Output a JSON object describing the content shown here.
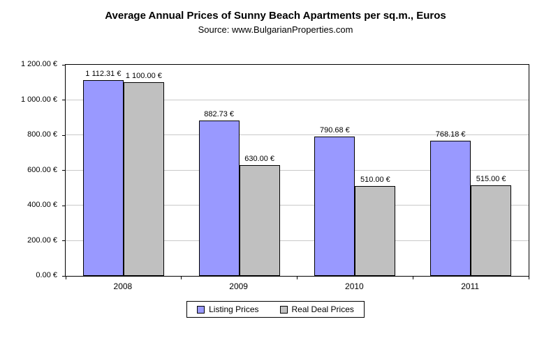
{
  "chart_data": {
    "type": "bar",
    "title": "Average Annual Prices of Sunny Beach Apartments per sq.m., Euros",
    "subtitle": "Source: www.BulgarianProperties.com",
    "xlabel": "",
    "ylabel": "",
    "ylim": [
      0,
      1200
    ],
    "grid": true,
    "legend_position": "bottom",
    "categories": [
      "2008",
      "2009",
      "2010",
      "2011"
    ],
    "yticks": [
      {
        "value": 0,
        "label": "0.00 €"
      },
      {
        "value": 200,
        "label": "200.00 €"
      },
      {
        "value": 400,
        "label": "400.00 €"
      },
      {
        "value": 600,
        "label": "600.00 €"
      },
      {
        "value": 800,
        "label": "800.00 €"
      },
      {
        "value": 1000,
        "label": "1 000.00 €"
      },
      {
        "value": 1200,
        "label": "1 200.00 €"
      }
    ],
    "series": [
      {
        "key": "listing-prices",
        "name": "Listing Prices",
        "color": "#9999ff",
        "values": [
          1112.31,
          882.73,
          790.68,
          768.18
        ],
        "labels": [
          "1 112.31 €",
          "882.73 €",
          "790.68 €",
          "768.18 €"
        ]
      },
      {
        "key": "real-deal-prices",
        "name": "Real Deal Prices",
        "color": "#c0c0c0",
        "values": [
          1100.0,
          630.0,
          510.0,
          515.0
        ],
        "labels": [
          "1 100.00 €",
          "630.00 €",
          "510.00 €",
          "515.00 €"
        ]
      }
    ]
  }
}
